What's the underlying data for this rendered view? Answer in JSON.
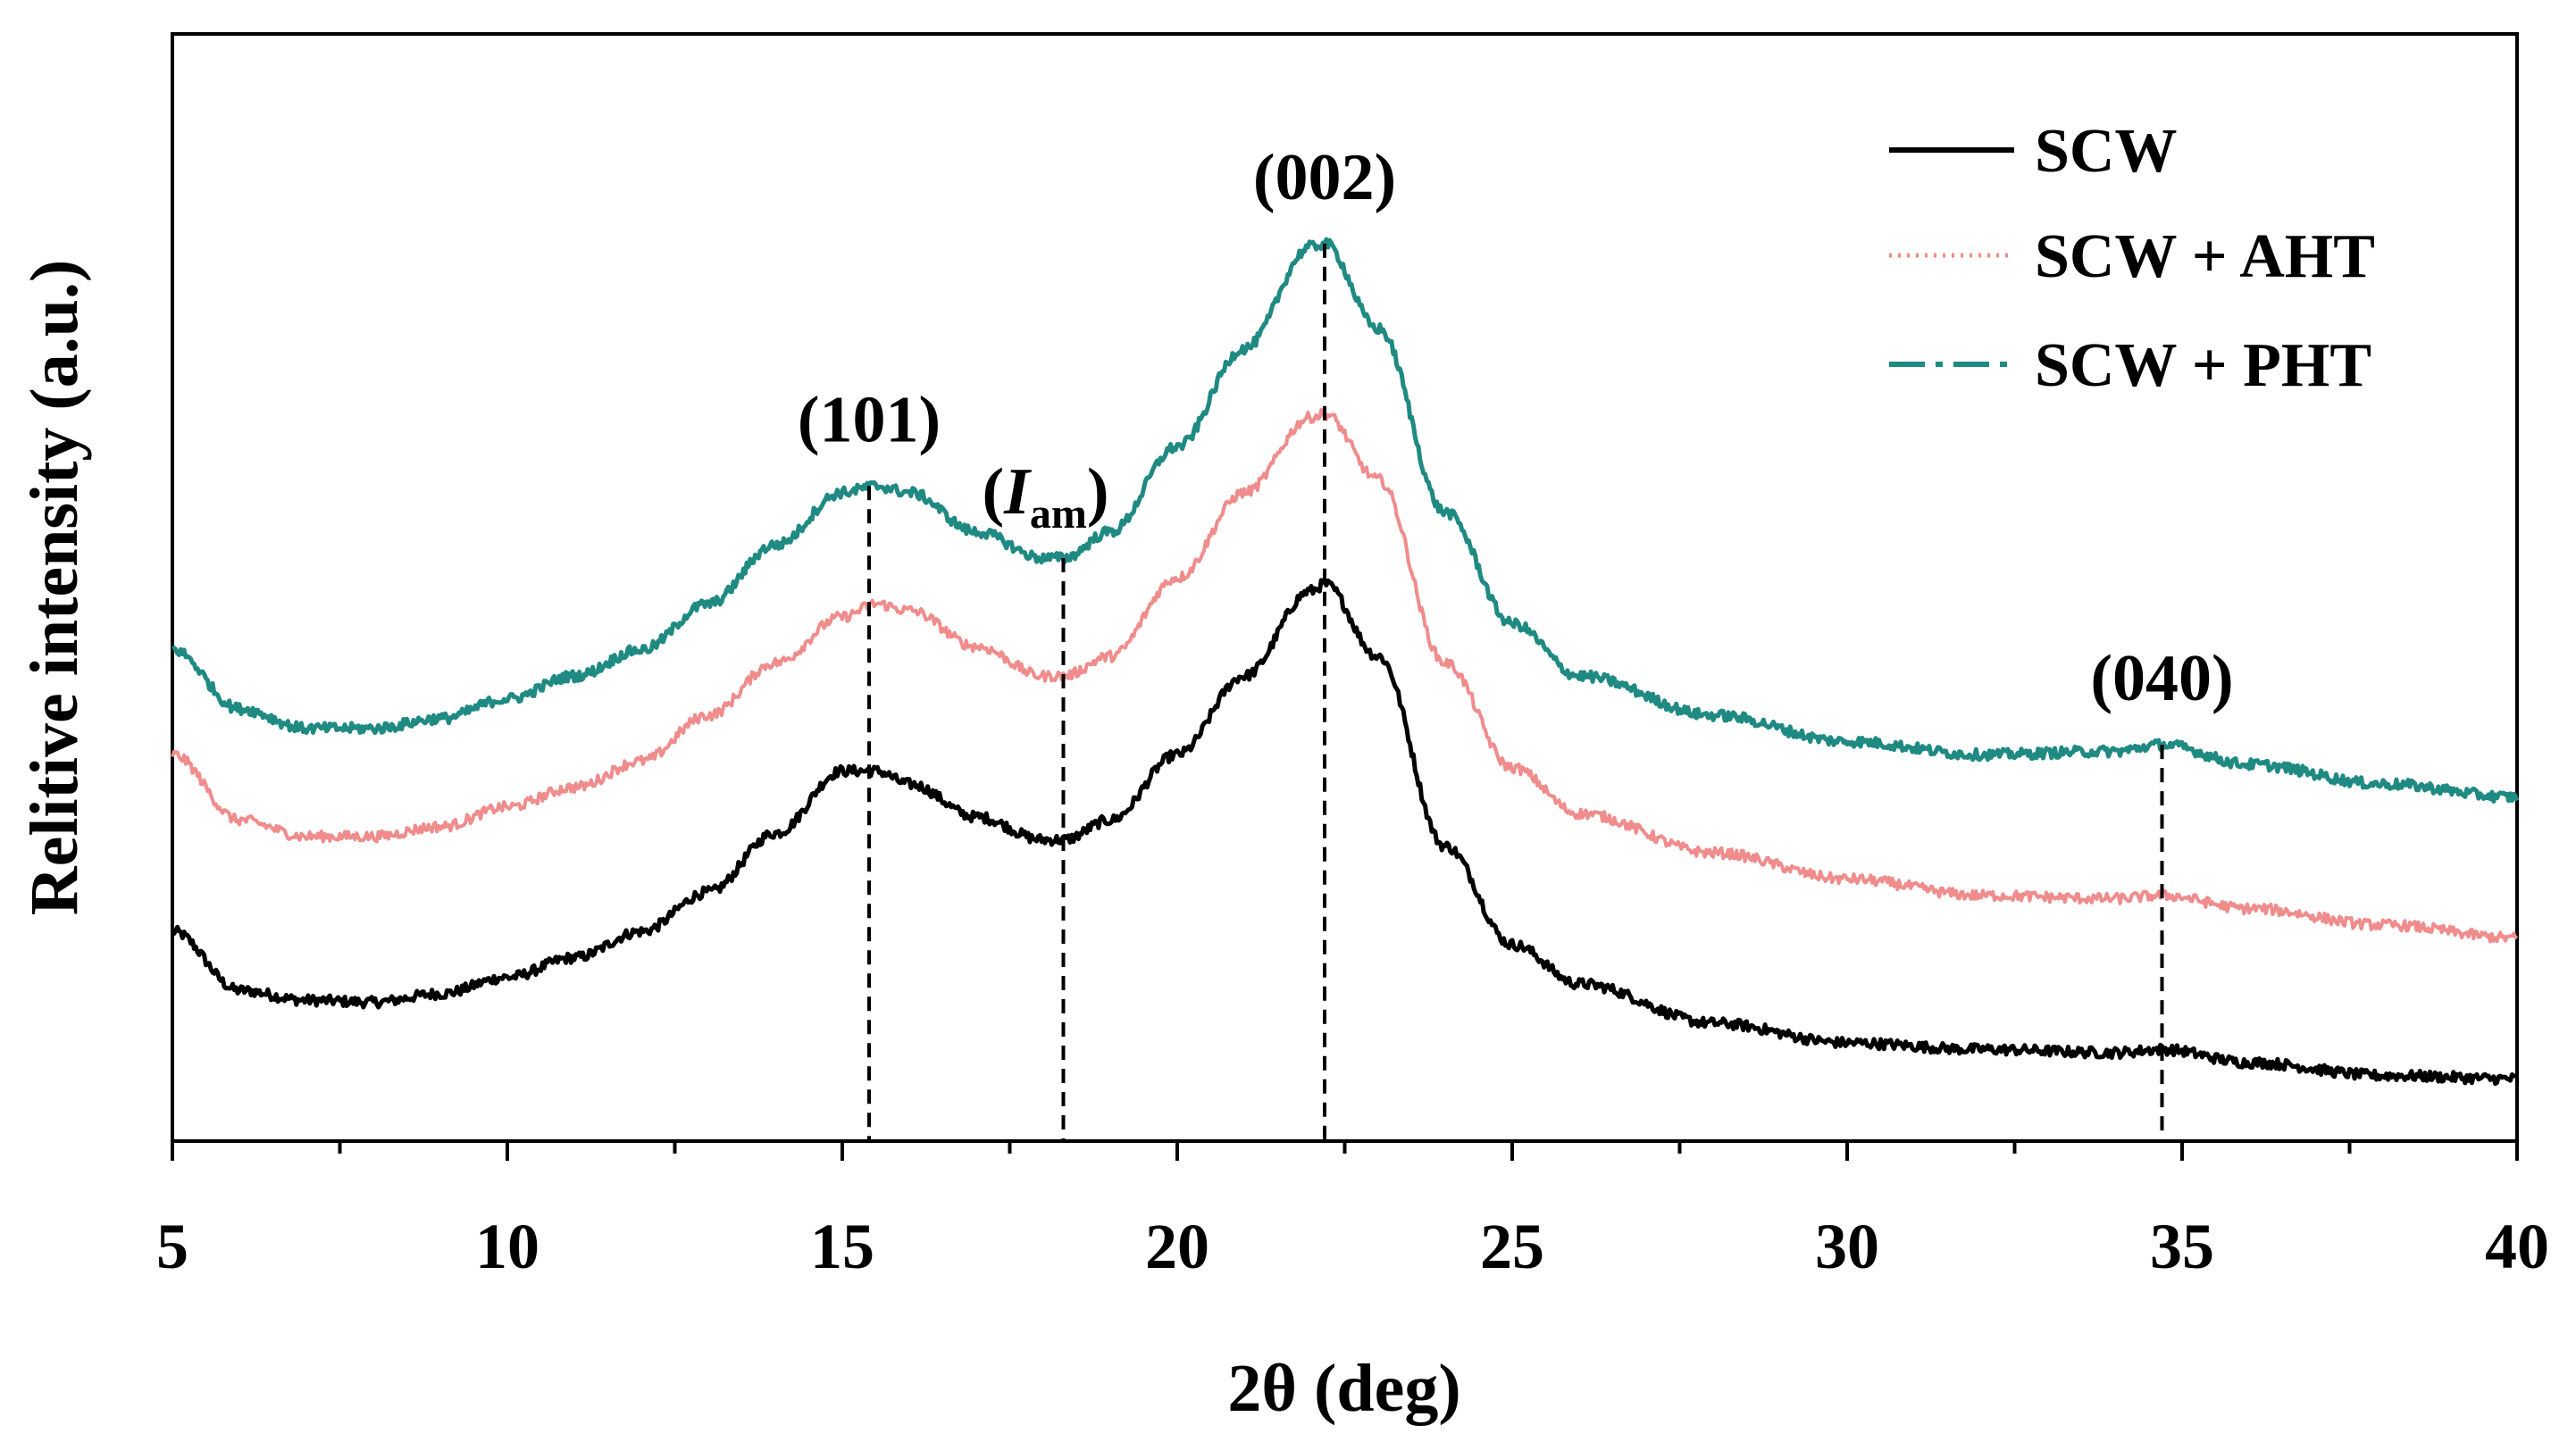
{
  "chart_data": {
    "type": "line",
    "xlabel": "2θ (deg)",
    "ylabel": "Relitive intensity (a.u.)",
    "xlim": [
      5,
      40
    ],
    "y_ticks_shown": false,
    "x_ticks": [
      "5",
      "10",
      "15",
      "20",
      "25",
      "30",
      "35",
      "40"
    ],
    "grid": false,
    "legend_position": "top-right",
    "series": [
      {
        "name": "SCW",
        "color": "#000000",
        "line_style": "solid",
        "x": [
          5,
          6,
          7,
          8,
          9,
          10,
          11,
          12,
          13,
          14,
          15,
          15.5,
          16,
          17,
          18,
          18.3,
          19,
          20,
          21,
          22,
          22.2,
          23,
          24,
          25,
          26,
          28,
          30,
          32,
          34,
          34.7,
          36,
          38,
          40
        ],
        "y": [
          31,
          22,
          20.5,
          20.2,
          21.5,
          24,
          27,
          31,
          37,
          46,
          55.5,
          55.5,
          53.5,
          48.5,
          45,
          45,
          48,
          58,
          70,
          83,
          84,
          73,
          44,
          29,
          23,
          17,
          14,
          13,
          12.5,
          13,
          11,
          9,
          8.5
        ]
      },
      {
        "name": "SCW + AHT",
        "color": "#f08c8c",
        "line_style": "dotted",
        "x": [
          5,
          6,
          7,
          8,
          9,
          10,
          11,
          12,
          13,
          14,
          15,
          15.5,
          16,
          17,
          18,
          18.3,
          19,
          20,
          21,
          22,
          22.2,
          23,
          24,
          25,
          26,
          28,
          30,
          32,
          34,
          34.7,
          36,
          38,
          40
        ],
        "y": [
          58,
          48,
          45.5,
          45.5,
          47,
          50,
          53,
          57,
          64,
          72,
          79,
          81,
          80,
          74.5,
          70,
          70,
          73,
          85,
          98,
          109.5,
          110,
          100,
          72,
          56,
          49,
          43,
          39,
          36.5,
          36,
          36.5,
          34.5,
          32,
          30
        ]
      },
      {
        "name": "SCW + PHT",
        "color": "#1f8a82",
        "line_style": "dash-dot",
        "x": [
          5,
          6,
          7,
          8,
          9,
          10,
          11,
          12,
          13,
          14,
          15,
          15.5,
          16,
          17,
          18,
          18.3,
          19,
          20,
          21,
          22,
          22.2,
          23,
          24,
          25,
          26,
          28,
          30,
          32,
          34,
          34.7,
          36,
          38,
          40
        ],
        "y": [
          74,
          65,
          62,
          62,
          63.5,
          66.5,
          70,
          74,
          81,
          90,
          98,
          99,
          98,
          92,
          88,
          88,
          92,
          105,
          120,
          135.5,
          136,
          123,
          95,
          78,
          70,
          64,
          60,
          58,
          58.5,
          59.5,
          56.5,
          53.5,
          51.5
        ]
      }
    ],
    "annotations": [
      {
        "label": "(101)",
        "x": 15.4,
        "y_top": 99
      },
      {
        "label_main": "I",
        "label_sub": "am",
        "x": 18.3,
        "y_top": 88
      },
      {
        "label": "(002)",
        "x": 22.2,
        "y_top": 136
      },
      {
        "label": "(040)",
        "x": 34.7,
        "y_top": 59.5
      }
    ],
    "ylim": [
      -1,
      168
    ]
  }
}
